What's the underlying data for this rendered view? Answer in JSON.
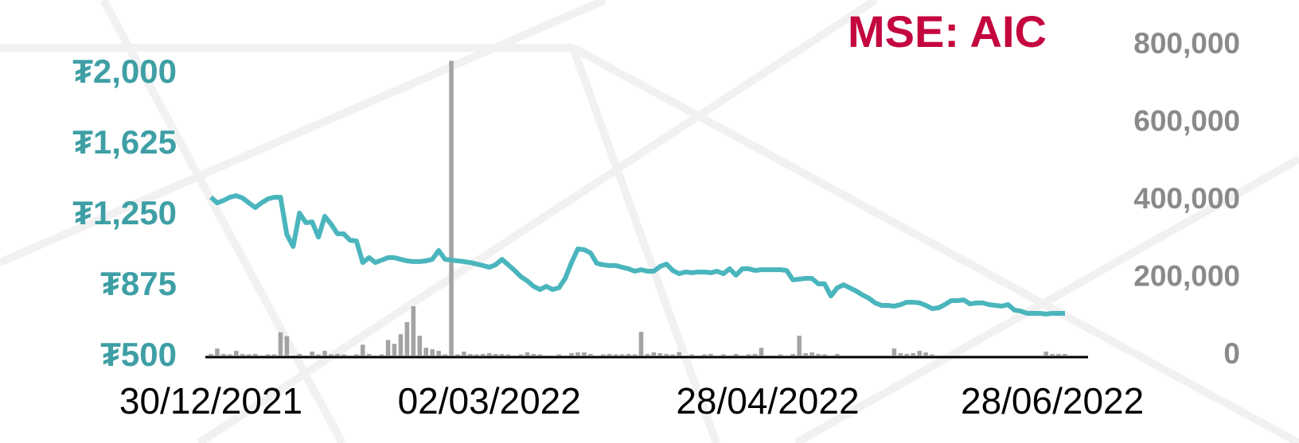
{
  "chart_data": {
    "type": "line",
    "title": "MSE: AIC",
    "categories": [
      "30/12/2021",
      null,
      null,
      null,
      null,
      null,
      null,
      null,
      null,
      null,
      null,
      null,
      null,
      null,
      null,
      null,
      null,
      null,
      null,
      null,
      null,
      null,
      null,
      null,
      null,
      null,
      null,
      null,
      null,
      null,
      null,
      null,
      null,
      null,
      null,
      null,
      null,
      null,
      null,
      null,
      null,
      null,
      null,
      null,
      "02/03/2022",
      null,
      null,
      null,
      null,
      null,
      null,
      null,
      null,
      null,
      null,
      null,
      null,
      null,
      null,
      null,
      null,
      null,
      null,
      null,
      null,
      null,
      null,
      null,
      null,
      null,
      null,
      null,
      null,
      null,
      null,
      null,
      null,
      null,
      null,
      null,
      null,
      null,
      null,
      null,
      null,
      null,
      null,
      null,
      "28/04/2022",
      null,
      null,
      null,
      null,
      null,
      null,
      null,
      null,
      null,
      null,
      null,
      null,
      null,
      null,
      null,
      null,
      null,
      null,
      null,
      null,
      null,
      null,
      null,
      null,
      null,
      null,
      null,
      null,
      null,
      null,
      null,
      null,
      null,
      null,
      null,
      null,
      null,
      null,
      null,
      null,
      null,
      null,
      null,
      null,
      "28/06/2022",
      null,
      null
    ],
    "series": [
      {
        "color": "#4ab5bd",
        "values": [
          1347,
          1317,
          1330,
          1347,
          1355,
          1343,
          1317,
          1292,
          1317,
          1338,
          1347,
          1347,
          1149,
          1086,
          1263,
          1212,
          1216,
          1136,
          1246,
          1204,
          1153,
          1153,
          1119,
          1115,
          1001,
          1027,
          1001,
          1014,
          1027,
          1027,
          1018,
          1010,
          1006,
          1006,
          1010,
          1018,
          1065,
          1018,
          1014,
          1010,
          1006,
          1001,
          993,
          985,
          976,
          989,
          1018,
          989,
          959,
          926,
          904,
          875,
          858,
          875,
          858,
          867,
          917,
          1001,
          1073,
          1069,
          1052,
          997,
          989,
          985,
          985,
          976,
          968,
          955,
          963,
          955,
          955,
          980,
          993,
          959,
          942,
          951,
          947,
          951,
          951,
          947,
          955,
          942,
          968,
          934,
          968,
          968,
          959,
          963,
          963,
          963,
          963,
          959,
          909,
          913,
          917,
          917,
          888,
          888,
          824,
          867,
          883,
          867,
          850,
          829,
          812,
          787,
          774,
          774,
          770,
          778,
          791,
          791,
          787,
          774,
          757,
          761,
          778,
          799,
          799,
          803,
          782,
          787,
          787,
          778,
          774,
          770,
          778,
          749,
          744,
          732,
          732,
          732,
          728,
          732,
          732,
          732
        ]
      },
      {
        "type": "bar",
        "axis": "y2",
        "color": "#a3a3a3",
        "values": [
          4000,
          18000,
          4000,
          3000,
          12000,
          4000,
          3000,
          4000,
          0,
          3000,
          3000,
          60000,
          50000,
          0,
          4000,
          0,
          10000,
          3000,
          12000,
          3000,
          4000,
          3000,
          0,
          3000,
          28000,
          4000,
          0,
          3000,
          40000,
          30000,
          55000,
          86000,
          127000,
          51000,
          20000,
          16000,
          12000,
          3000,
          760000,
          3000,
          10000,
          4000,
          3000,
          4000,
          6000,
          4000,
          4000,
          3000,
          0,
          3000,
          8000,
          4000,
          3000,
          0,
          0,
          3000,
          0,
          6000,
          8000,
          8000,
          4000,
          0,
          3000,
          4000,
          3000,
          3000,
          4000,
          3000,
          61000,
          4000,
          8000,
          6000,
          4000,
          3000,
          9000,
          0,
          3000,
          0,
          3000,
          4000,
          0,
          3000,
          0,
          4000,
          0,
          3000,
          4000,
          20000,
          0,
          0,
          3000,
          0,
          4000,
          51000,
          6000,
          8000,
          4000,
          3000,
          0,
          4000,
          0,
          0,
          0,
          0,
          0,
          0,
          0,
          0,
          18000,
          6000,
          4000,
          6000,
          12000,
          8000,
          3000,
          0,
          0,
          0,
          0,
          0,
          0,
          0,
          0,
          0,
          0,
          0,
          0,
          0,
          0,
          0,
          0,
          0,
          10000,
          4000,
          4000,
          4000
        ]
      }
    ],
    "ylim": [
      500,
      2000
    ],
    "yticks": [
      {
        "value": 500,
        "label": "₮500"
      },
      {
        "value": 875,
        "label": "₮875"
      },
      {
        "value": 1250,
        "label": "₮1,250"
      },
      {
        "value": 1625,
        "label": "₮1,625"
      },
      {
        "value": 2000,
        "label": "₮2,000"
      }
    ],
    "y2lim": [
      0,
      800000
    ],
    "y2ticks": [
      0,
      {
        "value": 200000,
        "label": "200,000"
      },
      {
        "value": 400000,
        "label": "400,000"
      },
      {
        "value": 600000,
        "label": "600,000"
      },
      {
        "value": 800000,
        "label": "800,000"
      }
    ],
    "title_color": "#c4063f",
    "ytick_color": "#3e9fa5",
    "y2tick_color": "#8a8a8a"
  }
}
